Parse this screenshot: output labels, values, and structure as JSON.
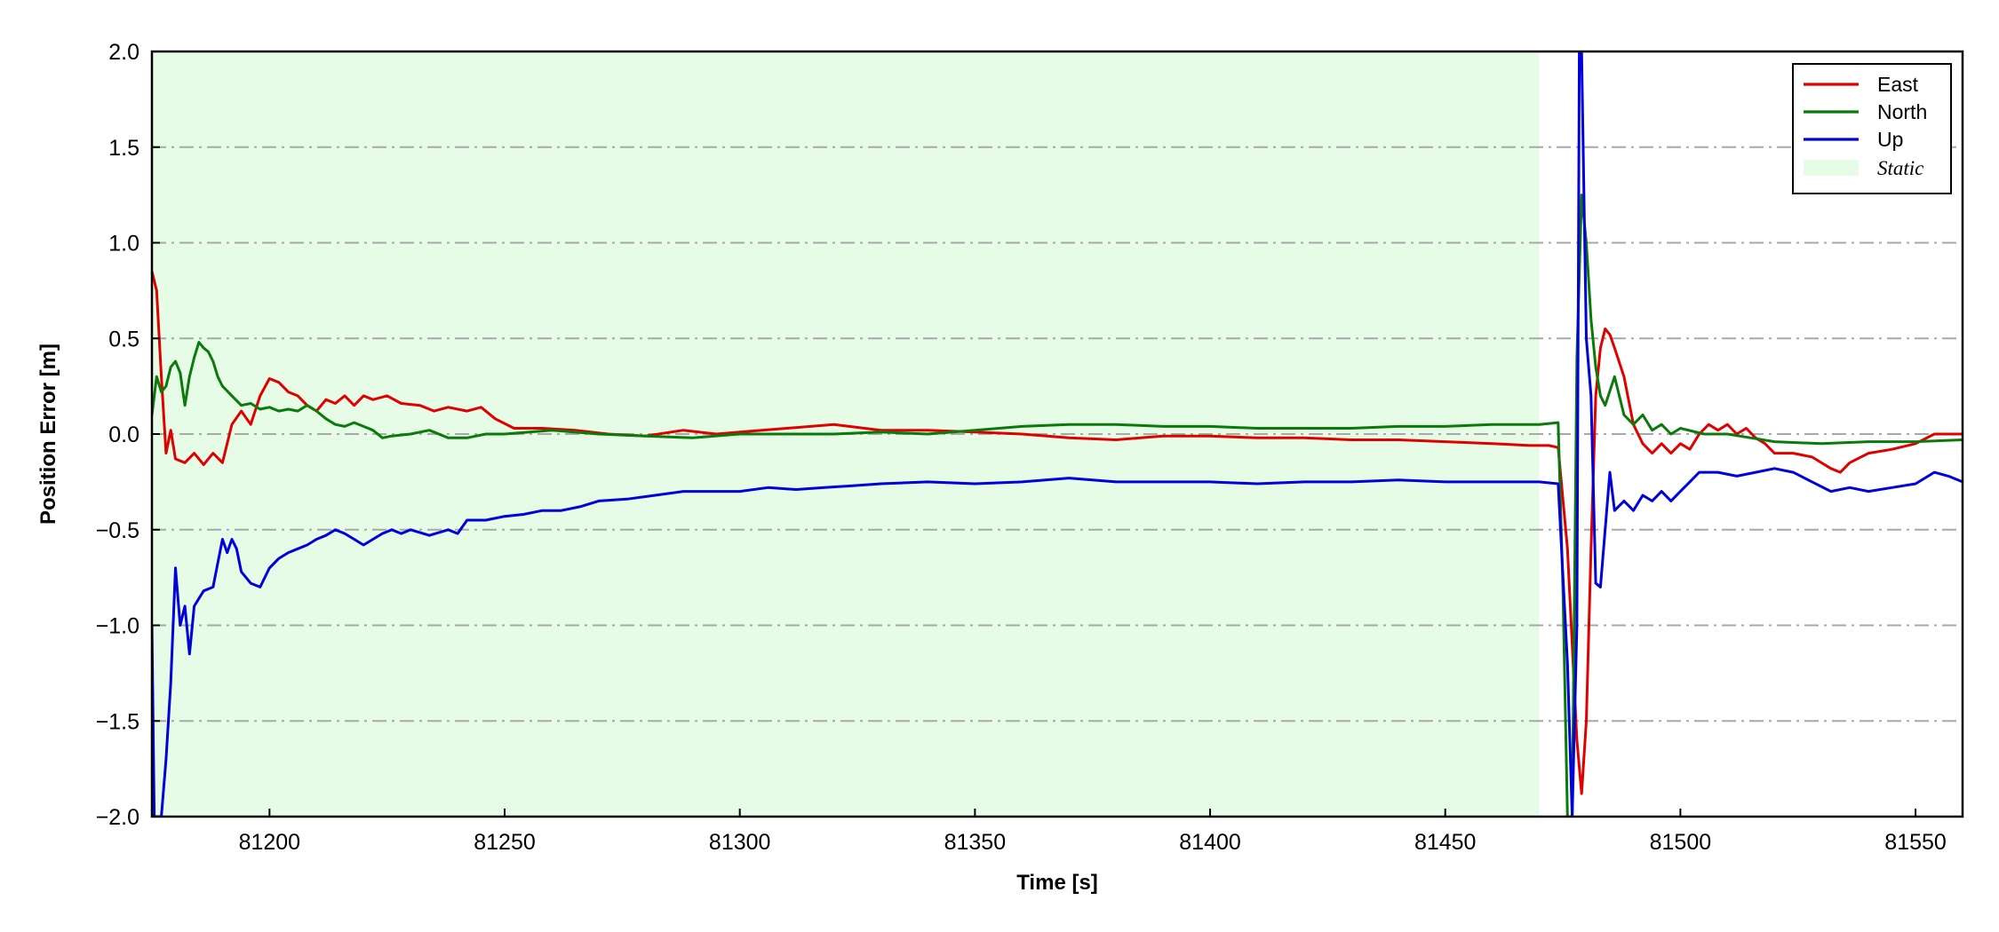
{
  "chart_data": {
    "type": "line",
    "xlabel": "Time [s]",
    "ylabel": "Position Error [m]",
    "xlim": [
      81175,
      81560
    ],
    "ylim": [
      -2.0,
      2.0
    ],
    "x_ticks": [
      81200,
      81250,
      81300,
      81350,
      81400,
      81450,
      81500,
      81550
    ],
    "x_tick_labels": [
      "81200",
      "81250",
      "81300",
      "81350",
      "81400",
      "81450",
      "81500",
      "81550"
    ],
    "y_ticks": [
      -2.0,
      -1.5,
      -1.0,
      -0.5,
      0.0,
      0.5,
      1.0,
      1.5,
      2.0
    ],
    "y_tick_labels": [
      "−2.0",
      "−1.5",
      "−1.0",
      "−0.5",
      "0.0",
      "0.5",
      "1.0",
      "1.5",
      "2.0"
    ],
    "grid": "horizontal dash-dot",
    "legend_position": "top-right",
    "static_region": {
      "label": "Static",
      "x_start": 81175,
      "x_end": 81470,
      "color": "#e6fce6"
    },
    "series": [
      {
        "name": "East",
        "color": "#e00000",
        "points": [
          [
            81175,
            0.85
          ],
          [
            81176,
            0.75
          ],
          [
            81177,
            0.3
          ],
          [
            81178,
            -0.1
          ],
          [
            81179,
            0.02
          ],
          [
            81180,
            -0.13
          ],
          [
            81182,
            -0.15
          ],
          [
            81184,
            -0.1
          ],
          [
            81186,
            -0.16
          ],
          [
            81188,
            -0.1
          ],
          [
            81190,
            -0.15
          ],
          [
            81192,
            0.05
          ],
          [
            81194,
            0.12
          ],
          [
            81196,
            0.05
          ],
          [
            81198,
            0.2
          ],
          [
            81200,
            0.29
          ],
          [
            81202,
            0.27
          ],
          [
            81204,
            0.22
          ],
          [
            81206,
            0.2
          ],
          [
            81208,
            0.15
          ],
          [
            81210,
            0.12
          ],
          [
            81212,
            0.18
          ],
          [
            81214,
            0.16
          ],
          [
            81216,
            0.2
          ],
          [
            81218,
            0.15
          ],
          [
            81220,
            0.2
          ],
          [
            81222,
            0.18
          ],
          [
            81225,
            0.2
          ],
          [
            81228,
            0.16
          ],
          [
            81232,
            0.15
          ],
          [
            81235,
            0.12
          ],
          [
            81238,
            0.14
          ],
          [
            81242,
            0.12
          ],
          [
            81245,
            0.14
          ],
          [
            81248,
            0.08
          ],
          [
            81252,
            0.03
          ],
          [
            81258,
            0.03
          ],
          [
            81265,
            0.02
          ],
          [
            81272,
            0.0
          ],
          [
            81280,
            -0.01
          ],
          [
            81288,
            0.02
          ],
          [
            81295,
            0.0
          ],
          [
            81300,
            0.01
          ],
          [
            81310,
            0.03
          ],
          [
            81320,
            0.05
          ],
          [
            81330,
            0.02
          ],
          [
            81340,
            0.02
          ],
          [
            81350,
            0.01
          ],
          [
            81360,
            0.0
          ],
          [
            81370,
            -0.02
          ],
          [
            81380,
            -0.03
          ],
          [
            81390,
            -0.01
          ],
          [
            81400,
            -0.01
          ],
          [
            81410,
            -0.02
          ],
          [
            81420,
            -0.02
          ],
          [
            81430,
            -0.03
          ],
          [
            81440,
            -0.03
          ],
          [
            81450,
            -0.04
          ],
          [
            81460,
            -0.05
          ],
          [
            81468,
            -0.06
          ],
          [
            81472,
            -0.06
          ],
          [
            81474,
            -0.07
          ],
          [
            81476,
            -0.6
          ],
          [
            81478,
            -1.6
          ],
          [
            81479,
            -1.88
          ],
          [
            81480,
            -1.5
          ],
          [
            81481,
            -0.6
          ],
          [
            81482,
            0.2
          ],
          [
            81483,
            0.45
          ],
          [
            81484,
            0.55
          ],
          [
            81485,
            0.52
          ],
          [
            81486,
            0.45
          ],
          [
            81488,
            0.3
          ],
          [
            81490,
            0.05
          ],
          [
            81492,
            -0.05
          ],
          [
            81494,
            -0.1
          ],
          [
            81496,
            -0.05
          ],
          [
            81498,
            -0.1
          ],
          [
            81500,
            -0.05
          ],
          [
            81502,
            -0.08
          ],
          [
            81504,
            0.0
          ],
          [
            81506,
            0.05
          ],
          [
            81508,
            0.02
          ],
          [
            81510,
            0.05
          ],
          [
            81512,
            0.0
          ],
          [
            81514,
            0.03
          ],
          [
            81516,
            -0.02
          ],
          [
            81518,
            -0.05
          ],
          [
            81520,
            -0.1
          ],
          [
            81524,
            -0.1
          ],
          [
            81528,
            -0.12
          ],
          [
            81532,
            -0.18
          ],
          [
            81534,
            -0.2
          ],
          [
            81536,
            -0.15
          ],
          [
            81540,
            -0.1
          ],
          [
            81545,
            -0.08
          ],
          [
            81550,
            -0.05
          ],
          [
            81554,
            0.0
          ],
          [
            81560,
            0.0
          ]
        ]
      },
      {
        "name": "North",
        "color": "#0a7a0a",
        "points": [
          [
            81175,
            0.1
          ],
          [
            81176,
            0.3
          ],
          [
            81177,
            0.22
          ],
          [
            81178,
            0.25
          ],
          [
            81179,
            0.35
          ],
          [
            81180,
            0.38
          ],
          [
            81181,
            0.32
          ],
          [
            81182,
            0.15
          ],
          [
            81183,
            0.3
          ],
          [
            81184,
            0.4
          ],
          [
            81185,
            0.48
          ],
          [
            81186,
            0.45
          ],
          [
            81187,
            0.43
          ],
          [
            81188,
            0.38
          ],
          [
            81189,
            0.3
          ],
          [
            81190,
            0.25
          ],
          [
            81192,
            0.2
          ],
          [
            81194,
            0.15
          ],
          [
            81196,
            0.16
          ],
          [
            81198,
            0.13
          ],
          [
            81200,
            0.14
          ],
          [
            81202,
            0.12
          ],
          [
            81204,
            0.13
          ],
          [
            81206,
            0.12
          ],
          [
            81208,
            0.15
          ],
          [
            81210,
            0.12
          ],
          [
            81212,
            0.08
          ],
          [
            81214,
            0.05
          ],
          [
            81216,
            0.04
          ],
          [
            81218,
            0.06
          ],
          [
            81220,
            0.04
          ],
          [
            81222,
            0.02
          ],
          [
            81224,
            -0.02
          ],
          [
            81226,
            -0.01
          ],
          [
            81230,
            0.0
          ],
          [
            81234,
            0.02
          ],
          [
            81238,
            -0.02
          ],
          [
            81242,
            -0.02
          ],
          [
            81246,
            0.0
          ],
          [
            81250,
            0.0
          ],
          [
            81260,
            0.02
          ],
          [
            81270,
            0.0
          ],
          [
            81280,
            -0.01
          ],
          [
            81290,
            -0.02
          ],
          [
            81300,
            0.0
          ],
          [
            81310,
            0.0
          ],
          [
            81320,
            0.0
          ],
          [
            81330,
            0.01
          ],
          [
            81340,
            0.0
          ],
          [
            81350,
            0.02
          ],
          [
            81360,
            0.04
          ],
          [
            81370,
            0.05
          ],
          [
            81380,
            0.05
          ],
          [
            81390,
            0.04
          ],
          [
            81400,
            0.04
          ],
          [
            81410,
            0.03
          ],
          [
            81420,
            0.03
          ],
          [
            81430,
            0.03
          ],
          [
            81440,
            0.04
          ],
          [
            81450,
            0.04
          ],
          [
            81460,
            0.05
          ],
          [
            81470,
            0.05
          ],
          [
            81474,
            0.06
          ],
          [
            81475,
            -0.8
          ],
          [
            81476,
            -2.0
          ],
          [
            81477,
            -2.0
          ],
          [
            81478,
            0.4
          ],
          [
            81479,
            1.25
          ],
          [
            81480,
            1.0
          ],
          [
            81481,
            0.6
          ],
          [
            81482,
            0.35
          ],
          [
            81483,
            0.2
          ],
          [
            81484,
            0.15
          ],
          [
            81486,
            0.3
          ],
          [
            81488,
            0.1
          ],
          [
            81490,
            0.05
          ],
          [
            81492,
            0.1
          ],
          [
            81494,
            0.02
          ],
          [
            81496,
            0.05
          ],
          [
            81498,
            0.0
          ],
          [
            81500,
            0.03
          ],
          [
            81505,
            0.0
          ],
          [
            81510,
            0.0
          ],
          [
            81515,
            -0.02
          ],
          [
            81520,
            -0.04
          ],
          [
            81530,
            -0.05
          ],
          [
            81540,
            -0.04
          ],
          [
            81550,
            -0.04
          ],
          [
            81560,
            -0.03
          ]
        ]
      },
      {
        "name": "Up",
        "color": "#0000dd",
        "points": [
          [
            81175,
            -1.0
          ],
          [
            81175.5,
            -2.0
          ],
          [
            81177,
            -2.0
          ],
          [
            81178,
            -1.7
          ],
          [
            81179,
            -1.3
          ],
          [
            81180,
            -0.7
          ],
          [
            81181,
            -1.0
          ],
          [
            81182,
            -0.9
          ],
          [
            81183,
            -1.15
          ],
          [
            81184,
            -0.9
          ],
          [
            81186,
            -0.82
          ],
          [
            81188,
            -0.8
          ],
          [
            81190,
            -0.55
          ],
          [
            81191,
            -0.62
          ],
          [
            81192,
            -0.55
          ],
          [
            81193,
            -0.6
          ],
          [
            81194,
            -0.72
          ],
          [
            81196,
            -0.78
          ],
          [
            81198,
            -0.8
          ],
          [
            81200,
            -0.7
          ],
          [
            81202,
            -0.65
          ],
          [
            81204,
            -0.62
          ],
          [
            81206,
            -0.6
          ],
          [
            81208,
            -0.58
          ],
          [
            81210,
            -0.55
          ],
          [
            81212,
            -0.53
          ],
          [
            81214,
            -0.5
          ],
          [
            81216,
            -0.52
          ],
          [
            81218,
            -0.55
          ],
          [
            81220,
            -0.58
          ],
          [
            81222,
            -0.55
          ],
          [
            81224,
            -0.52
          ],
          [
            81226,
            -0.5
          ],
          [
            81228,
            -0.52
          ],
          [
            81230,
            -0.5
          ],
          [
            81234,
            -0.53
          ],
          [
            81238,
            -0.5
          ],
          [
            81240,
            -0.52
          ],
          [
            81242,
            -0.45
          ],
          [
            81246,
            -0.45
          ],
          [
            81250,
            -0.43
          ],
          [
            81254,
            -0.42
          ],
          [
            81258,
            -0.4
          ],
          [
            81262,
            -0.4
          ],
          [
            81266,
            -0.38
          ],
          [
            81270,
            -0.35
          ],
          [
            81276,
            -0.34
          ],
          [
            81282,
            -0.32
          ],
          [
            81288,
            -0.3
          ],
          [
            81294,
            -0.3
          ],
          [
            81300,
            -0.3
          ],
          [
            81306,
            -0.28
          ],
          [
            81312,
            -0.29
          ],
          [
            81318,
            -0.28
          ],
          [
            81324,
            -0.27
          ],
          [
            81330,
            -0.26
          ],
          [
            81340,
            -0.25
          ],
          [
            81350,
            -0.26
          ],
          [
            81360,
            -0.25
          ],
          [
            81370,
            -0.23
          ],
          [
            81380,
            -0.25
          ],
          [
            81390,
            -0.25
          ],
          [
            81400,
            -0.25
          ],
          [
            81410,
            -0.26
          ],
          [
            81420,
            -0.25
          ],
          [
            81430,
            -0.25
          ],
          [
            81440,
            -0.24
          ],
          [
            81450,
            -0.25
          ],
          [
            81460,
            -0.25
          ],
          [
            81470,
            -0.25
          ],
          [
            81474,
            -0.26
          ],
          [
            81476,
            -1.2
          ],
          [
            81477,
            -2.0
          ],
          [
            81478,
            -1.0
          ],
          [
            81478.5,
            2.0
          ],
          [
            81479,
            2.0
          ],
          [
            81480,
            0.5
          ],
          [
            81481,
            0.2
          ],
          [
            81482,
            -0.78
          ],
          [
            81483,
            -0.8
          ],
          [
            81484,
            -0.5
          ],
          [
            81485,
            -0.2
          ],
          [
            81486,
            -0.4
          ],
          [
            81488,
            -0.35
          ],
          [
            81490,
            -0.4
          ],
          [
            81492,
            -0.32
          ],
          [
            81494,
            -0.35
          ],
          [
            81496,
            -0.3
          ],
          [
            81498,
            -0.35
          ],
          [
            81500,
            -0.3
          ],
          [
            81502,
            -0.25
          ],
          [
            81504,
            -0.2
          ],
          [
            81508,
            -0.2
          ],
          [
            81512,
            -0.22
          ],
          [
            81516,
            -0.2
          ],
          [
            81520,
            -0.18
          ],
          [
            81524,
            -0.2
          ],
          [
            81528,
            -0.25
          ],
          [
            81532,
            -0.3
          ],
          [
            81536,
            -0.28
          ],
          [
            81540,
            -0.3
          ],
          [
            81545,
            -0.28
          ],
          [
            81550,
            -0.26
          ],
          [
            81554,
            -0.2
          ],
          [
            81557,
            -0.22
          ],
          [
            81560,
            -0.25
          ]
        ]
      }
    ]
  }
}
